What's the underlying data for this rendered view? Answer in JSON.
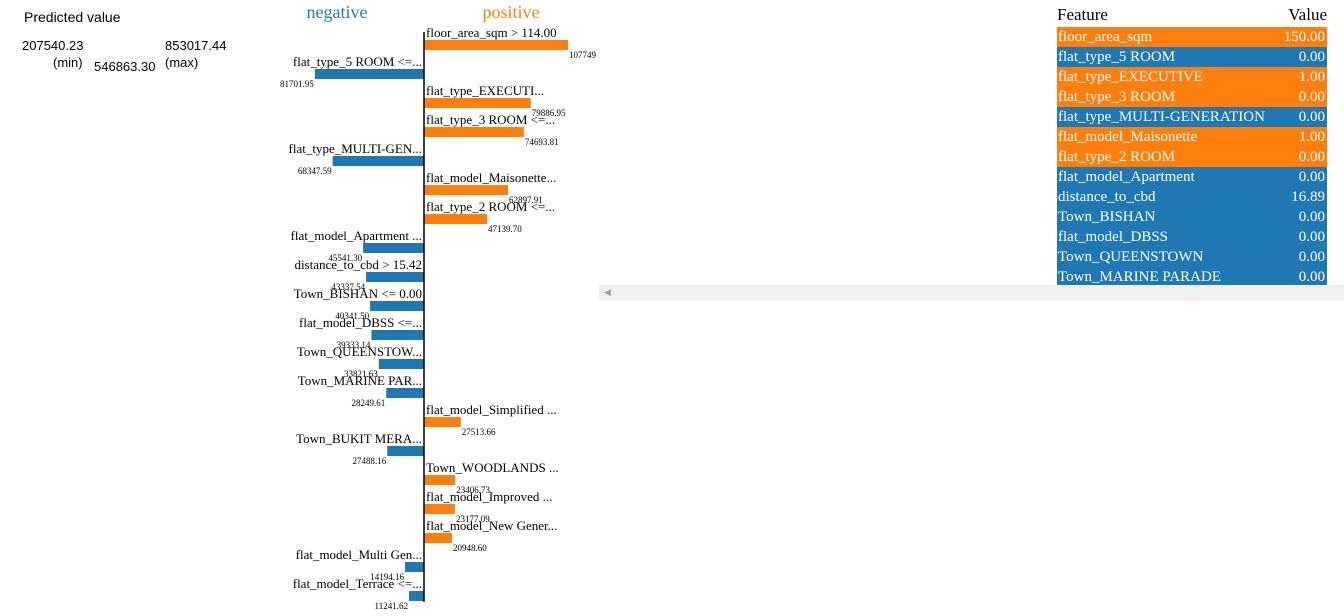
{
  "prediction": {
    "title": "Predicted value",
    "min_value": "207540.23",
    "min_label": "(min)",
    "value": "546863.30",
    "max_value": "853017.44",
    "max_label": "(max)"
  },
  "colors": {
    "negative": "#1f77b4",
    "positive": "#ff7f0e",
    "scroll": "#f0f0f0"
  },
  "chart_data": {
    "type": "bar",
    "headers": {
      "negative": "negative",
      "positive": "positive"
    },
    "bars": [
      {
        "label": "floor_area_sqm > 114.00",
        "value": 107749,
        "value_text": "107749",
        "side": "positive"
      },
      {
        "label": "flat_type_5 ROOM <=...",
        "value": 81701.95,
        "value_text": "81701.95",
        "side": "negative"
      },
      {
        "label": "flat_type_EXECUTI...",
        "value": 79886.95,
        "value_text": "79886.95",
        "side": "positive"
      },
      {
        "label": "flat_type_3 ROOM <=...",
        "value": 74693.81,
        "value_text": "74693.81",
        "side": "positive"
      },
      {
        "label": "flat_type_MULTI-GEN...",
        "value": 68347.59,
        "value_text": "68347.59",
        "side": "negative"
      },
      {
        "label": "flat_model_Maisonette...",
        "value": 62897.91,
        "value_text": "62897.91",
        "side": "positive"
      },
      {
        "label": "flat_type_2 ROOM <=...",
        "value": 47139.7,
        "value_text": "47139.70",
        "side": "positive"
      },
      {
        "label": "flat_model_Apartment ...",
        "value": 45541.3,
        "value_text": "45541.30",
        "side": "negative"
      },
      {
        "label": "distance_to_cbd > 15.42",
        "value": 43337.54,
        "value_text": "43337.54",
        "side": "negative"
      },
      {
        "label": "Town_BISHAN <= 0.00",
        "value": 40341.5,
        "value_text": "40341.50",
        "side": "negative"
      },
      {
        "label": "flat_model_DBSS <=...",
        "value": 39333.14,
        "value_text": "39333.14",
        "side": "negative"
      },
      {
        "label": "Town_QUEENSTOW...",
        "value": 33821.63,
        "value_text": "33821.63",
        "side": "negative"
      },
      {
        "label": "Town_MARINE PAR...",
        "value": 28249.61,
        "value_text": "28249.61",
        "side": "negative"
      },
      {
        "label": "flat_model_Simplified ...",
        "value": 27513.66,
        "value_text": "27513.66",
        "side": "positive"
      },
      {
        "label": "Town_BUKIT MERA...",
        "value": 27488.16,
        "value_text": "27488.16",
        "side": "negative"
      },
      {
        "label": "Town_WOODLANDS ...",
        "value": 23406.73,
        "value_text": "23406.73",
        "side": "positive"
      },
      {
        "label": "flat_model_Improved ...",
        "value": 23177.09,
        "value_text": "23177.09",
        "side": "positive"
      },
      {
        "label": "flat_model_New Gener...",
        "value": 20948.6,
        "value_text": "20948.60",
        "side": "positive"
      },
      {
        "label": "flat_model_Multi Gen...",
        "value": 14194.16,
        "value_text": "14194.16",
        "side": "negative"
      },
      {
        "label": "flat_model_Terrace <=...",
        "value": 11241.62,
        "value_text": "11241.62",
        "side": "negative"
      }
    ]
  },
  "feature_table": {
    "header_feature": "Feature",
    "header_value": "Value",
    "rows": [
      {
        "feature": "floor_area_sqm",
        "value": "150.00",
        "side": "positive"
      },
      {
        "feature": "flat_type_5 ROOM",
        "value": "0.00",
        "side": "negative"
      },
      {
        "feature": "flat_type_EXECUTIVE",
        "value": "1.00",
        "side": "positive"
      },
      {
        "feature": "flat_type_3 ROOM",
        "value": "0.00",
        "side": "positive"
      },
      {
        "feature": "flat_type_MULTI-GENERATION",
        "value": "0.00",
        "side": "negative"
      },
      {
        "feature": "flat_model_Maisonette",
        "value": "1.00",
        "side": "positive"
      },
      {
        "feature": "flat_type_2 ROOM",
        "value": "0.00",
        "side": "positive"
      },
      {
        "feature": "flat_model_Apartment",
        "value": "0.00",
        "side": "negative"
      },
      {
        "feature": "distance_to_cbd",
        "value": "16.89",
        "side": "negative"
      },
      {
        "feature": "Town_BISHAN",
        "value": "0.00",
        "side": "negative"
      },
      {
        "feature": "flat_model_DBSS",
        "value": "0.00",
        "side": "negative"
      },
      {
        "feature": "Town_QUEENSTOWN",
        "value": "0.00",
        "side": "negative"
      },
      {
        "feature": "Town_MARINE PARADE",
        "value": "0.00",
        "side": "negative"
      }
    ]
  },
  "scrollbar": {
    "left_arrow_icon": "left-arrow-icon"
  }
}
